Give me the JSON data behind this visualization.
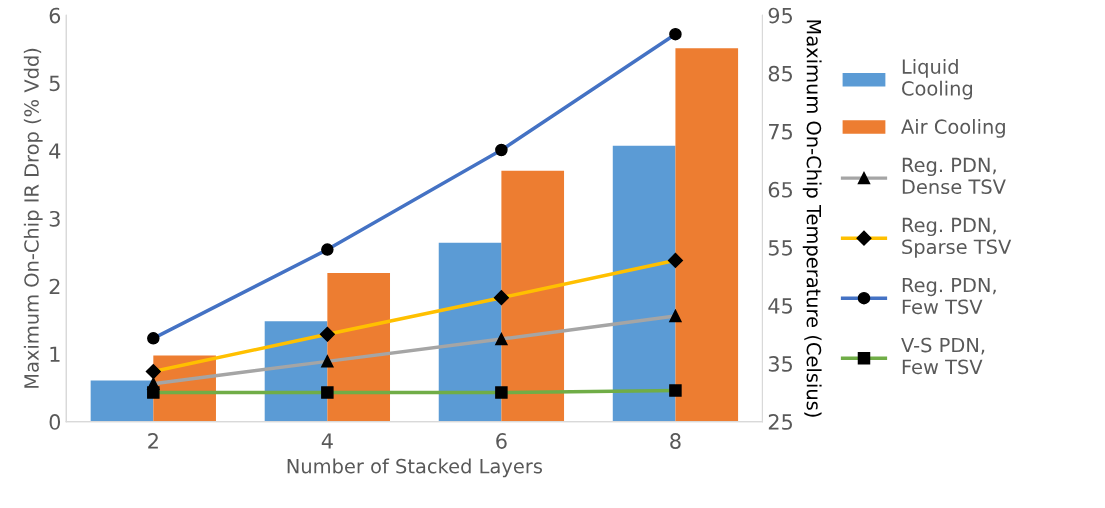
{
  "chart_data": {
    "type": "bar",
    "xlabel": "Number of Stacked Layers",
    "ylabel": "Maximum On-Chip IR Drop (% Vdd)",
    "y2label": "Maximum On-Chip Temperature (Celsius)",
    "categories": [
      "2",
      "4",
      "6",
      "8"
    ],
    "series": [
      {
        "name": "Liquid\nCooling",
        "axis": "y2",
        "color": "#5b9bd5",
        "values": [
          32.1,
          42.3,
          55.8,
          72.5
        ]
      },
      {
        "name": "Air Cooling",
        "axis": "y2",
        "color": "#ed7d31",
        "values": [
          36.4,
          50.6,
          68.2,
          89.3
        ]
      },
      {
        "name": "Reg. PDN,\nDense TSV",
        "type": "line",
        "marker": "triangle",
        "color": "#a5a5a5",
        "values": [
          0.56,
          0.89,
          1.22,
          1.56
        ]
      },
      {
        "name": "Reg. PDN,\nSparse TSV",
        "type": "line",
        "marker": "diamond",
        "color": "#ffc000",
        "values": [
          0.74,
          1.29,
          1.83,
          2.38
        ]
      },
      {
        "name": "Reg. PDN,\nFew TSV",
        "type": "line",
        "marker": "circle",
        "color": "#4472c4",
        "values": [
          1.23,
          2.54,
          4.01,
          5.72
        ]
      },
      {
        "name": "V-S PDN,\nFew TSV",
        "type": "line",
        "marker": "square",
        "color": "#70ad47",
        "values": [
          0.43,
          0.43,
          0.43,
          0.46
        ]
      }
    ],
    "ylim": [
      0,
      6
    ],
    "yticks": [
      0,
      1,
      2,
      3,
      4,
      5,
      6
    ],
    "y2lim": [
      25,
      95
    ],
    "y2ticks": [
      25,
      35,
      45,
      55,
      65,
      75,
      85,
      95
    ],
    "grid": false,
    "legend": "right"
  }
}
